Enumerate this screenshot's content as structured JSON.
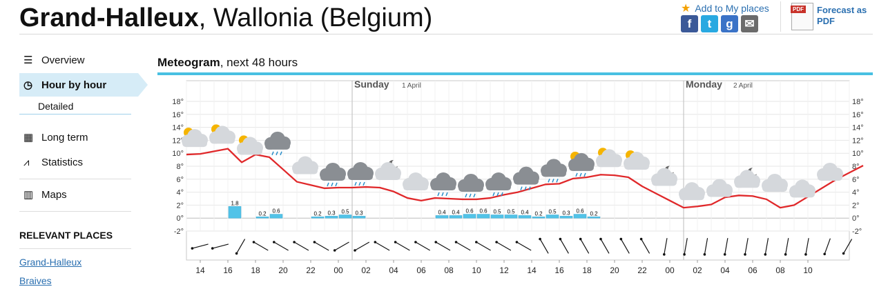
{
  "header": {
    "city": "Grand-Halleux",
    "region": ", Wallonia (Belgium)",
    "add_places": "Add to My places",
    "pdf_label": "PDF",
    "pdf_text1": "Forecast as",
    "pdf_text2": "PDF",
    "social": [
      "f",
      "t",
      "g",
      "✉"
    ]
  },
  "sidebar": {
    "overview": "Overview",
    "hour_by_hour": "Hour by hour",
    "detailed": "Detailed",
    "long_term": "Long term",
    "statistics": "Statistics",
    "maps": "Maps",
    "relevant_heading": "RELEVANT PLACES",
    "relevant_places": [
      "Grand-Halleux",
      "Braives"
    ]
  },
  "meteogram": {
    "title_bold": "Meteogram",
    "title_rest": ", next 48 hours"
  },
  "chart_data": {
    "type": "line",
    "days": [
      {
        "name": "Sunday",
        "date": "1 April"
      },
      {
        "name": "Monday",
        "date": "2 April"
      }
    ],
    "y_ticks": [
      "18°",
      "16°",
      "14°",
      "12°",
      "10°",
      "8°",
      "6°",
      "4°",
      "2°",
      "0°",
      "-2°"
    ],
    "ylim": [
      -2,
      18
    ],
    "x_labels": [
      "14",
      "16",
      "18",
      "20",
      "22",
      "00",
      "02",
      "04",
      "06",
      "08",
      "10",
      "12",
      "14",
      "16",
      "18",
      "20",
      "22",
      "00",
      "02",
      "04",
      "06",
      "08",
      "10"
    ],
    "temperature": [
      9.8,
      9.9,
      10.3,
      10.7,
      8.6,
      9.8,
      9.4,
      7.5,
      5.6,
      5.1,
      4.6,
      4.7,
      4.7,
      4.8,
      4.7,
      4.1,
      3.1,
      2.7,
      3.1,
      3.0,
      2.9,
      2.9,
      3.1,
      3.6,
      4.0,
      4.6,
      5.2,
      5.3,
      6.1,
      6.3,
      6.7,
      6.6,
      6.3,
      4.9,
      3.8,
      2.7,
      1.6,
      1.8,
      2.1,
      3.2,
      3.5,
      3.4,
      2.9,
      1.6,
      2.0,
      3.3,
      4.6,
      5.9,
      7.0,
      8.1
    ],
    "precipitation": [
      {
        "hour": 3,
        "value": 1.8,
        "label": "1.8"
      },
      {
        "hour": 5,
        "value": 0.2,
        "label": "0.2"
      },
      {
        "hour": 6,
        "value": 0.6,
        "label": "0.6"
      },
      {
        "hour": 9,
        "value": 0.2,
        "label": "0.2"
      },
      {
        "hour": 10,
        "value": 0.3,
        "label": "0.3"
      },
      {
        "hour": 11,
        "value": 0.5,
        "label": "0.5"
      },
      {
        "hour": 12,
        "value": 0.3,
        "label": "0.3"
      },
      {
        "hour": 18,
        "value": 0.4,
        "label": "0.4"
      },
      {
        "hour": 19,
        "value": 0.4,
        "label": "0.4"
      },
      {
        "hour": 20,
        "value": 0.6,
        "label": "0.6"
      },
      {
        "hour": 21,
        "value": 0.6,
        "label": "0.6"
      },
      {
        "hour": 22,
        "value": 0.5,
        "label": "0.5"
      },
      {
        "hour": 23,
        "value": 0.5,
        "label": "0.5"
      },
      {
        "hour": 24,
        "value": 0.4,
        "label": "0.4"
      },
      {
        "hour": 25,
        "value": 0.2,
        "label": "0.2"
      },
      {
        "hour": 26,
        "value": 0.5,
        "label": "0.5"
      },
      {
        "hour": 27,
        "value": 0.3,
        "label": "0.3"
      },
      {
        "hour": 28,
        "value": 0.6,
        "label": "0.6"
      },
      {
        "hour": 29,
        "value": 0.2,
        "label": "0.2"
      }
    ],
    "symbols": [
      {
        "hour": 0,
        "kind": "sun-cloud"
      },
      {
        "hour": 2,
        "kind": "sun-cloud"
      },
      {
        "hour": 4,
        "kind": "sun-cloud"
      },
      {
        "hour": 6,
        "kind": "rain"
      },
      {
        "hour": 8,
        "kind": "cloud"
      },
      {
        "hour": 10,
        "kind": "rain"
      },
      {
        "hour": 12,
        "kind": "rain"
      },
      {
        "hour": 14,
        "kind": "moon-cloud"
      },
      {
        "hour": 16,
        "kind": "cloud"
      },
      {
        "hour": 18,
        "kind": "rain"
      },
      {
        "hour": 20,
        "kind": "rain"
      },
      {
        "hour": 22,
        "kind": "rain"
      },
      {
        "hour": 24,
        "kind": "rain"
      },
      {
        "hour": 26,
        "kind": "rain"
      },
      {
        "hour": 28,
        "kind": "sun-rain"
      },
      {
        "hour": 30,
        "kind": "sun-cloud"
      },
      {
        "hour": 32,
        "kind": "sun-cloud"
      },
      {
        "hour": 34,
        "kind": "moon-cloud"
      },
      {
        "hour": 36,
        "kind": "cloud"
      },
      {
        "hour": 38,
        "kind": "cloud"
      },
      {
        "hour": 40,
        "kind": "moon-cloud"
      },
      {
        "hour": 42,
        "kind": "cloud"
      },
      {
        "hour": 44,
        "kind": "cloud"
      },
      {
        "hour": 46,
        "kind": "cloud"
      }
    ],
    "wind_directions_deg": [
      255,
      255,
      210,
      300,
      300,
      300,
      300,
      240,
      240,
      300,
      300,
      300,
      300,
      300,
      300,
      300,
      300,
      330,
      330,
      330,
      330,
      330,
      330,
      190,
      190,
      190,
      190,
      190,
      190,
      190,
      190,
      200,
      210
    ],
    "colors": {
      "temperature": "#e0282a",
      "precipitation": "#52c3e8",
      "day_line": "#bbbbbb"
    }
  }
}
